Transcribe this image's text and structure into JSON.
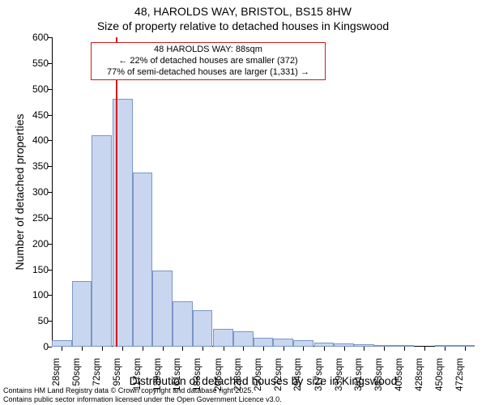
{
  "title_line1": "48, HAROLDS WAY, BRISTOL, BS15 8HW",
  "title_line2": "Size of property relative to detached houses in Kingswood",
  "y_axis_label": "Number of detached properties",
  "x_axis_label": "Distribution of detached houses by size in Kingswood",
  "footer_line1": "Contains HM Land Registry data © Crown copyright and database right 2025.",
  "footer_line2": "Contains public sector information licensed under the Open Government Licence v3.0.",
  "chart": {
    "type": "histogram",
    "background_color": "#ffffff",
    "axis_color": "#000000",
    "bar_fill": "#c9d6ef",
    "bar_stroke": "#7a95c7",
    "bar_stroke_width": 1,
    "ref_line_color": "#d11b1b",
    "ref_line_x": 88,
    "annotation_border_color": "#d11b1b",
    "annotation_border_width": 1,
    "annotation_lines": [
      "48 HAROLDS WAY: 88sqm",
      "← 22% of detached houses are smaller (372)",
      "77% of semi-detached houses are larger (1,331) →"
    ],
    "ylim": [
      0,
      600
    ],
    "ytick_step": 50,
    "x_categories": [
      "28sqm",
      "50sqm",
      "72sqm",
      "95sqm",
      "117sqm",
      "139sqm",
      "161sqm",
      "183sqm",
      "206sqm",
      "228sqm",
      "250sqm",
      "272sqm",
      "294sqm",
      "317sqm",
      "339sqm",
      "361sqm",
      "383sqm",
      "405sqm",
      "428sqm",
      "450sqm",
      "472sqm"
    ],
    "x_centers": [
      28,
      50,
      72,
      95,
      117,
      139,
      161,
      183,
      206,
      228,
      250,
      272,
      294,
      317,
      339,
      361,
      383,
      405,
      428,
      450,
      472
    ],
    "bar_values": [
      12,
      128,
      410,
      480,
      338,
      148,
      88,
      70,
      35,
      30,
      18,
      15,
      12,
      8,
      6,
      5,
      2,
      2,
      0,
      2,
      2
    ],
    "bar_width_units": 22,
    "title_fontsize": 14,
    "label_fontsize": 14,
    "tick_fontsize": 12,
    "annotation_fontsize": 11,
    "footer_fontsize": 9
  }
}
